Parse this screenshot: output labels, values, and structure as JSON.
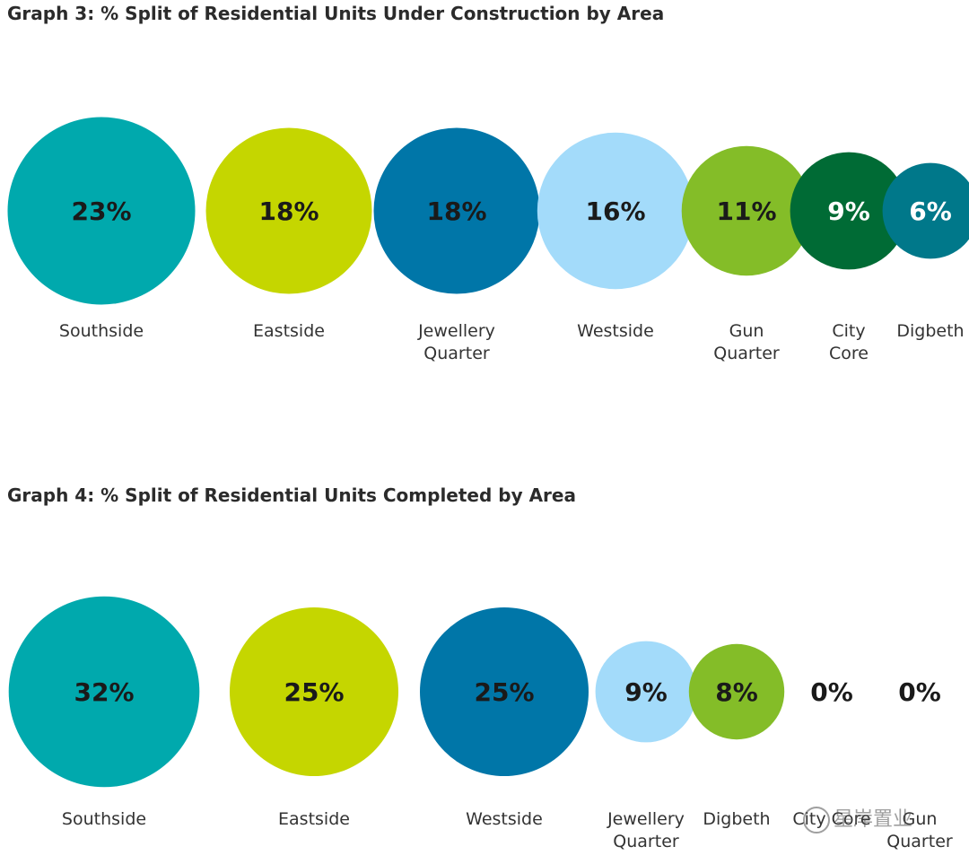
{
  "chart_data": [
    {
      "id": "g3",
      "type": "bubble",
      "title": "Graph 3: % Split of Residential Units Under Construction by Area",
      "categories": [
        "Southside",
        "Eastside",
        "Jewellery Quarter",
        "Westside",
        "Gun Quarter",
        "City Core",
        "Digbeth"
      ],
      "label_lines": [
        [
          "Southside"
        ],
        [
          "Eastside"
        ],
        [
          "Jewellery",
          "Quarter"
        ],
        [
          "Westside"
        ],
        [
          "Gun",
          "Quarter"
        ],
        [
          "City",
          "Core"
        ],
        [
          "Digbeth"
        ]
      ],
      "values": [
        23,
        18,
        18,
        16,
        11,
        9,
        6
      ],
      "value_labels": [
        "23%",
        "18%",
        "18%",
        "16%",
        "11%",
        "9%",
        "6%"
      ],
      "colors": [
        "#00A9AD",
        "#C5D600",
        "#0076A8",
        "#A3DBFA",
        "#84BD28",
        "#006B35",
        "#00788A"
      ],
      "value_text_colors": [
        "#1a1a1a",
        "#1a1a1a",
        "#1a1a1a",
        "#1a1a1a",
        "#1a1a1a",
        "#ffffff",
        "#ffffff"
      ]
    },
    {
      "id": "g4",
      "type": "bubble",
      "title": "Graph 4: % Split of Residential Units Completed by Area",
      "categories": [
        "Southside",
        "Eastside",
        "Westside",
        "Jewellery Quarter",
        "Digbeth",
        "City Core",
        "Gun Quarter"
      ],
      "label_lines": [
        [
          "Southside"
        ],
        [
          "Eastside"
        ],
        [
          "Westside"
        ],
        [
          "Jewellery",
          "Quarter"
        ],
        [
          "Digbeth"
        ],
        [
          "City Core"
        ],
        [
          "Gun",
          "Quarter"
        ]
      ],
      "values": [
        32,
        25,
        25,
        9,
        8,
        0,
        0
      ],
      "value_labels": [
        "32%",
        "25%",
        "25%",
        "9%",
        "8%",
        "0%",
        "0%"
      ],
      "colors": [
        "#00A9AD",
        "#C5D600",
        "#0076A8",
        "#A3DBFA",
        "#84BD28",
        "#006B35",
        "#84BD28"
      ],
      "value_text_colors": [
        "#1a1a1a",
        "#1a1a1a",
        "#1a1a1a",
        "#1a1a1a",
        "#1a1a1a",
        "#1a1a1a",
        "#1a1a1a"
      ]
    }
  ],
  "watermark": {
    "text": "星岸置业",
    "icon": "wechat-icon"
  }
}
